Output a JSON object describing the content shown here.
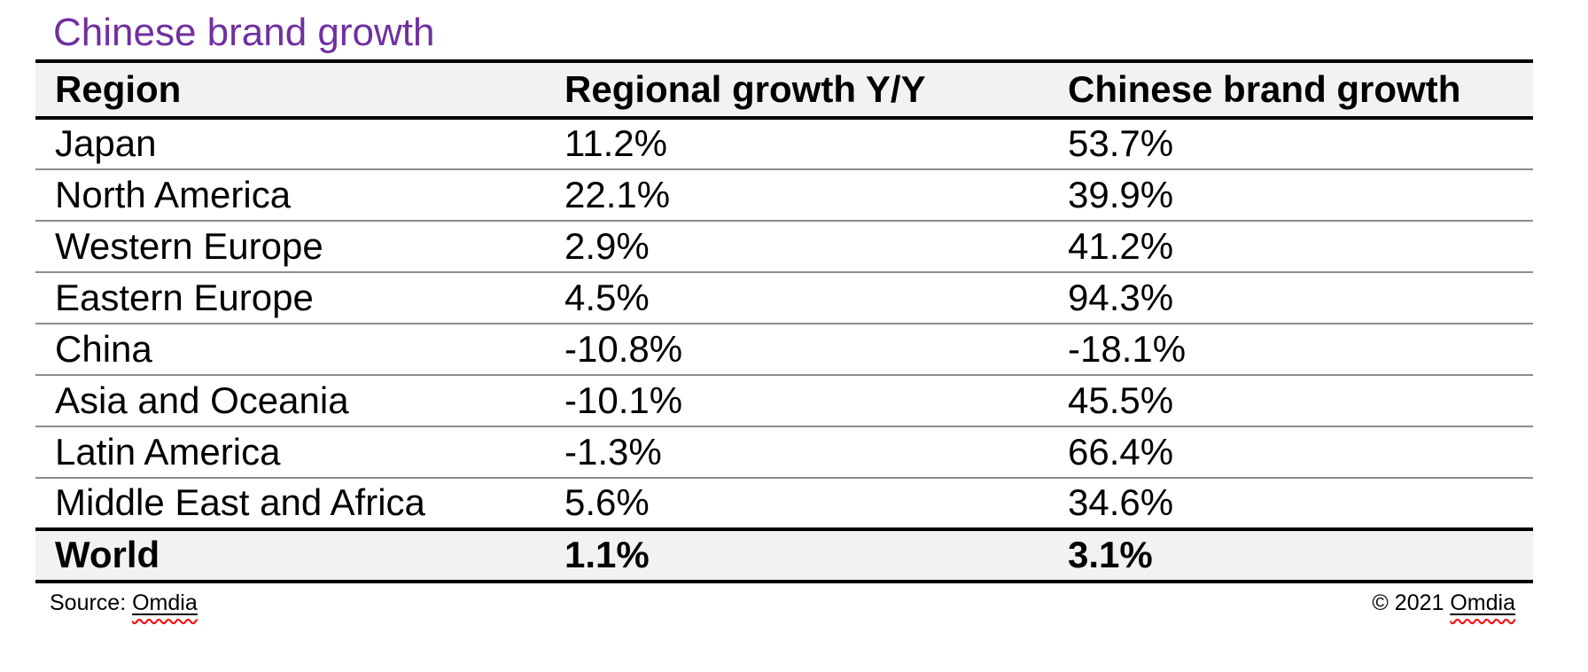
{
  "title": "Chinese brand growth",
  "chart_data": {
    "type": "table",
    "title": "Chinese brand growth",
    "columns": [
      "Region",
      "Regional growth Y/Y",
      "Chinese brand growth"
    ],
    "categories": [
      "Japan",
      "North America",
      "Western Europe",
      "Eastern Europe",
      "China",
      "Asia and Oceania",
      "Latin America",
      "Middle East and Africa"
    ],
    "series": [
      {
        "name": "Regional growth Y/Y",
        "values": [
          11.2,
          22.1,
          2.9,
          4.5,
          -10.8,
          -10.1,
          -1.3,
          5.6
        ]
      },
      {
        "name": "Chinese brand growth",
        "values": [
          53.7,
          39.9,
          41.2,
          94.3,
          -18.1,
          45.5,
          66.4,
          34.6
        ]
      }
    ],
    "unit": "%",
    "rows": [
      [
        "Japan",
        "11.2%",
        "53.7%"
      ],
      [
        "North America",
        "22.1%",
        "39.9%"
      ],
      [
        "Western Europe",
        "2.9%",
        "41.2%"
      ],
      [
        "Eastern Europe",
        "4.5%",
        "94.3%"
      ],
      [
        "China",
        "-10.8%",
        "-18.1%"
      ],
      [
        "Asia and Oceania",
        "-10.1%",
        "45.5%"
      ],
      [
        "Latin America",
        "-1.3%",
        "66.4%"
      ],
      [
        "Middle East and Africa",
        "5.6%",
        "34.6%"
      ]
    ],
    "total_row": [
      "World",
      "1.1%",
      "3.1%"
    ]
  },
  "footer": {
    "source_label": "Source: ",
    "source_name": "Omdia",
    "copyright_label": "© 2021 ",
    "copyright_name": "Omdia"
  },
  "colors": {
    "title_purple": "#7030A0",
    "band_gray": "#F2F2F2",
    "row_line_gray": "#8C8C8C",
    "heavy_line_black": "#000000",
    "spellcheck_red": "#FF0000"
  }
}
